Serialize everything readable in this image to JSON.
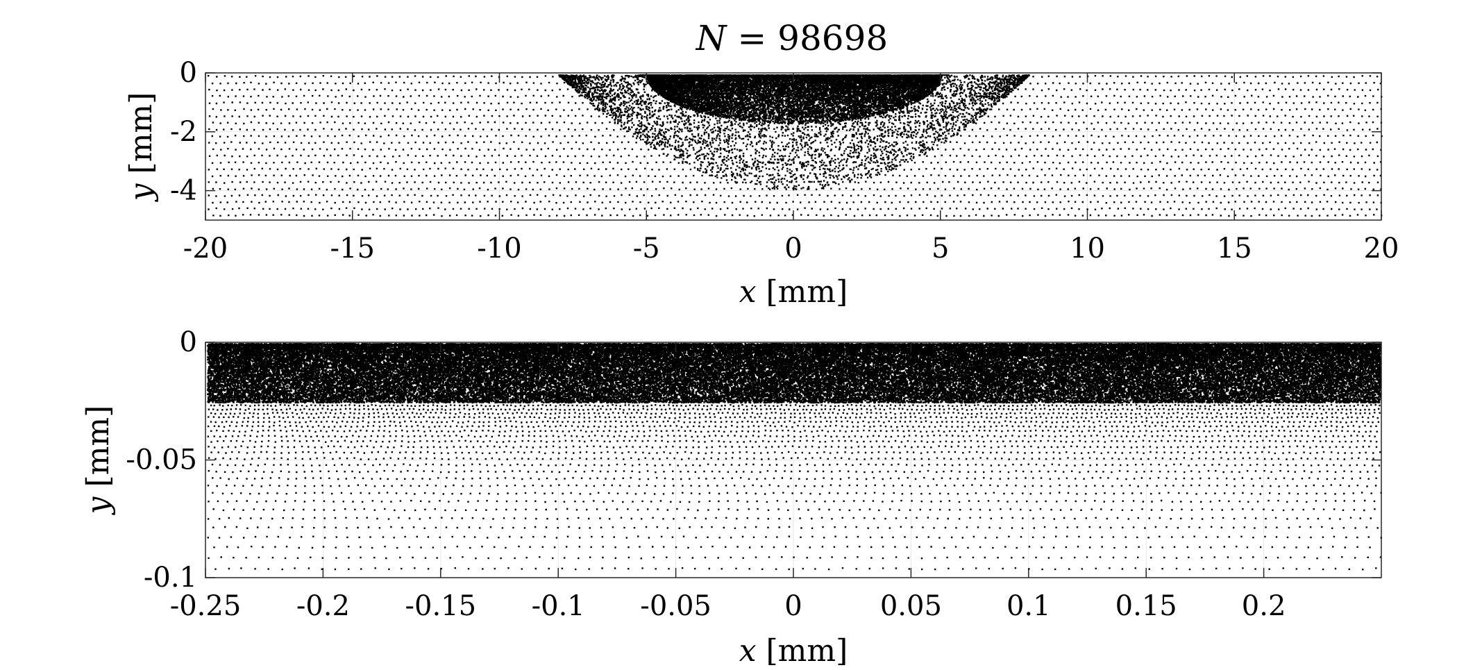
{
  "title": {
    "symbol": "N",
    "rest": " = 98698"
  },
  "chart_data": [
    {
      "type": "scatter",
      "title": "N = 98698",
      "xlabel_var": "x",
      "xlabel_unit": " [mm]",
      "ylabel_var": "y",
      "ylabel_unit": " [mm]",
      "xlim": [
        -20,
        20
      ],
      "ylim": [
        -5,
        0
      ],
      "xticks": [
        -20,
        -15,
        -10,
        -5,
        0,
        5,
        10,
        15,
        20
      ],
      "xtick_labels": [
        "-20",
        "-15",
        "-10",
        "-5",
        "0",
        "5",
        "10",
        "15",
        "20"
      ],
      "yticks": [
        0,
        -2,
        -4
      ],
      "ytick_labels": [
        "0",
        "-2",
        "-4"
      ],
      "grid": true,
      "marker_color": "#000000",
      "point_distribution": "dense near surface around x = 0 (|x| < 5, y > -1.5), sparse away from center",
      "dense_region": {
        "x_center": 0,
        "x_half_width": 5,
        "y_depth": 1.5
      }
    },
    {
      "type": "scatter",
      "xlabel_var": "x",
      "xlabel_unit": " [mm]",
      "ylabel_var": "y",
      "ylabel_unit": " [mm]",
      "xlim": [
        -0.25,
        0.25
      ],
      "ylim": [
        -0.1,
        0
      ],
      "xticks": [
        -0.25,
        -0.2,
        -0.15,
        -0.1,
        -0.05,
        0,
        0.05,
        0.1,
        0.15,
        0.2
      ],
      "xtick_labels": [
        "-0.25",
        "-0.2",
        "-0.15",
        "-0.1",
        "-0.05",
        "0",
        "0.05",
        "0.1",
        "0.15",
        "0.2"
      ],
      "yticks": [
        0,
        -0.05,
        -0.1
      ],
      "ytick_labels": [
        "0",
        "-0.05",
        "-0.1"
      ],
      "grid": true,
      "marker_color": "#000000",
      "point_distribution": "solid dense band from y = 0 to about y = -0.025 across full width, spacing grows with depth",
      "dense_region": {
        "y_depth": 0.025
      }
    }
  ]
}
